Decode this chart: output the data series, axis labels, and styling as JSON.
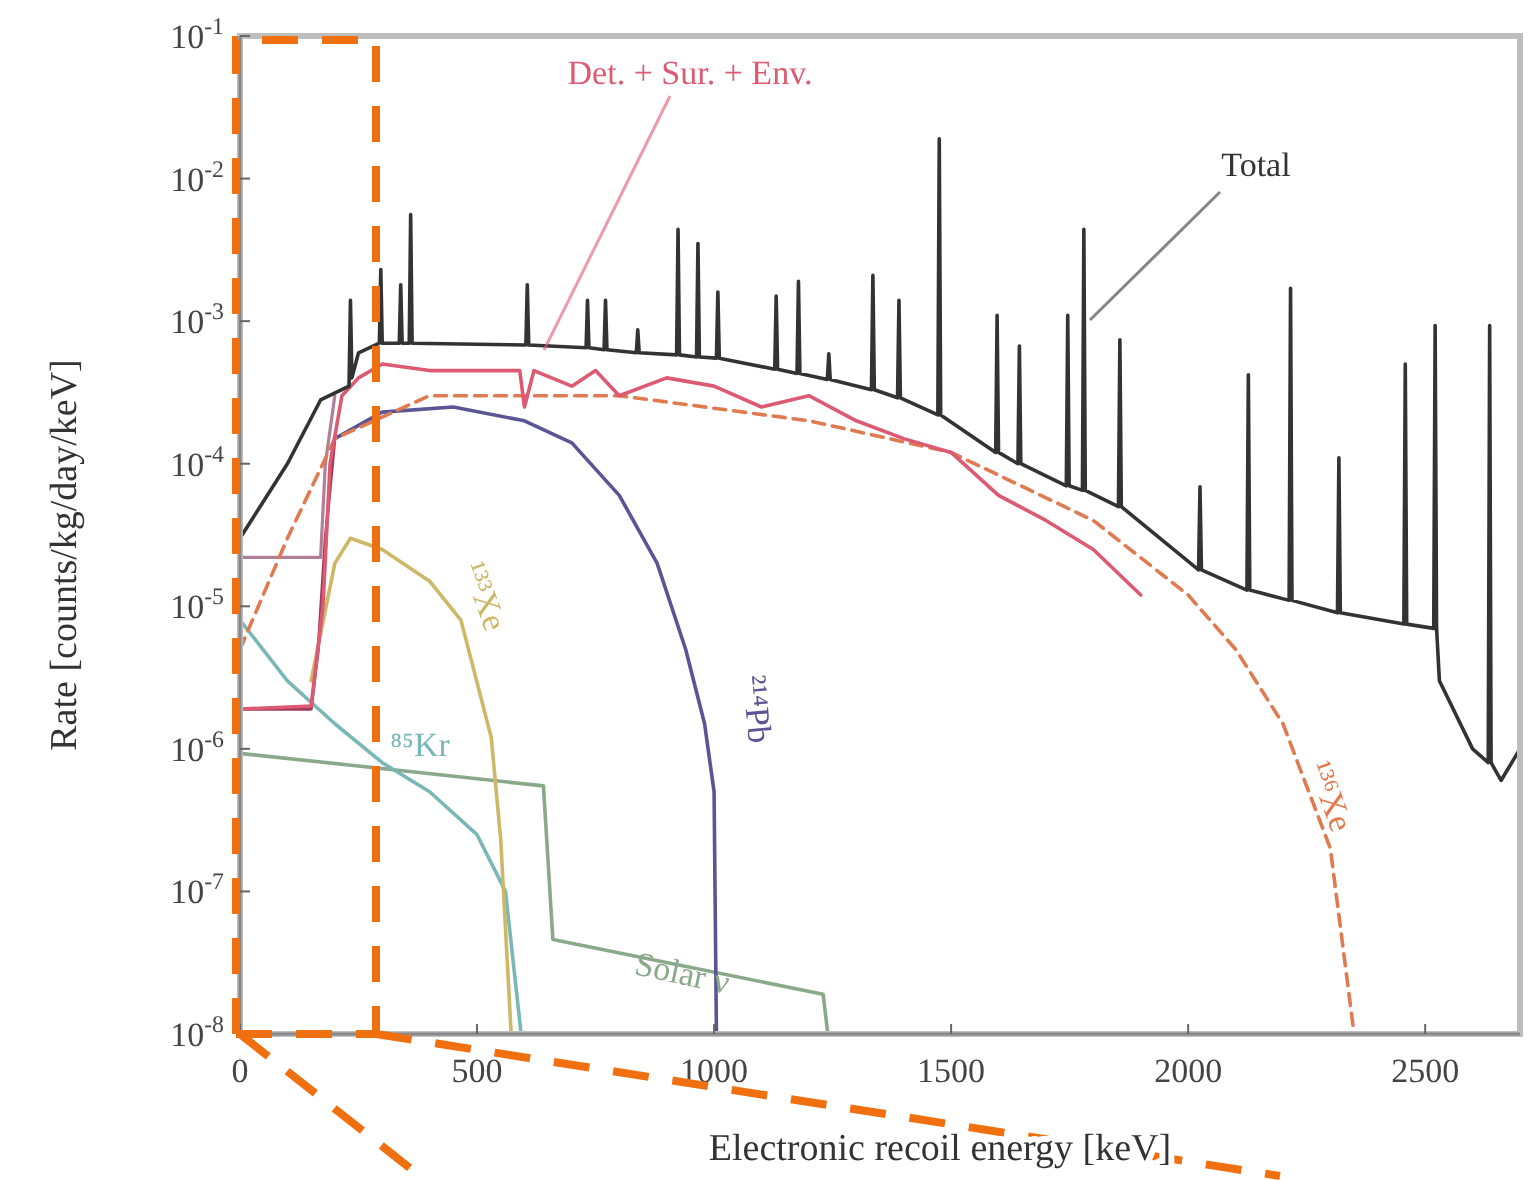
{
  "chart_data": {
    "type": "line",
    "xlabel": "Electronic recoil energy [keV]",
    "ylabel": "Rate [counts/kg/day/keV]",
    "log": "y",
    "grid": false,
    "xlim": [
      0,
      2700
    ],
    "xticks": [
      0,
      500,
      1000,
      1500,
      2000,
      2500
    ],
    "ylim": [
      1e-08,
      0.1
    ],
    "yticks": [
      {
        "value": 1e-08,
        "label": "10$^{-8}$"
      },
      {
        "value": 1e-07,
        "label": "10$^{-7}$"
      },
      {
        "value": 1e-06,
        "label": "10$^{-6}$"
      },
      {
        "value": 1e-05,
        "label": "10$^{-5}$"
      },
      {
        "value": 0.0001,
        "label": "10$^{-4}$"
      },
      {
        "value": 0.001,
        "label": "10$^{-3}$"
      },
      {
        "value": 0.01,
        "label": "10$^{-2}$"
      },
      {
        "value": 0.1,
        "label": "10$^{-1}$"
      }
    ],
    "series": [
      {
        "name": "Solar ν",
        "color": "#8aa88a",
        "x": [
          0,
          640,
          660,
          1230,
          1240
        ],
        "values": [
          9.3e-07,
          5.5e-07,
          4.6e-08,
          1.9e-08,
          1e-08
        ]
      },
      {
        "name": "⁸⁵Kr",
        "color": "#7ab8b8",
        "x": [
          0,
          100,
          200,
          300,
          400,
          500,
          560,
          593
        ],
        "values": [
          8e-06,
          3e-06,
          1.5e-06,
          8e-07,
          5e-07,
          2.5e-07,
          1e-07,
          1e-08
        ]
      },
      {
        "name": "¹³³Xe",
        "color": "#cdb868",
        "x": [
          150,
          200,
          233,
          300,
          400,
          466,
          530,
          550,
          572
        ],
        "values": [
          3e-06,
          2e-05,
          3e-05,
          2.5e-05,
          1.5e-05,
          8e-06,
          1.2e-06,
          2.3e-07,
          1e-08
        ]
      },
      {
        "color": "#b08098",
        "x": [
          0,
          170,
          180,
          200
        ],
        "values": [
          2.2e-05,
          2.2e-05,
          0.0001,
          0.0003
        ]
      },
      {
        "color": "#a03a5a",
        "x": [
          0,
          150,
          165,
          180,
          200
        ],
        "values": [
          1.9e-06,
          1.9e-06,
          5e-06,
          3e-05,
          0.00015
        ]
      },
      {
        "name": "²¹⁴Pb",
        "color": "#5a5594",
        "x": [
          200,
          300,
          450,
          600,
          700,
          800,
          880,
          940,
          980,
          1000,
          1005
        ],
        "values": [
          0.00015,
          0.00023,
          0.00025,
          0.0002,
          0.00014,
          6e-05,
          2e-05,
          5e-06,
          1.5e-06,
          5e-07,
          1e-08
        ]
      },
      {
        "name": "¹³⁶Xe",
        "color": "#e07a50",
        "line_style": "dashed",
        "x": [
          0,
          100,
          200,
          400,
          800,
          1200,
          1500,
          1800,
          2000,
          2100,
          2200,
          2300,
          2350
        ],
        "values": [
          5e-06,
          3e-05,
          0.00015,
          0.0003,
          0.0003,
          0.0002,
          0.00012,
          4e-05,
          1.2e-05,
          5e-06,
          1.5e-06,
          2e-07,
          1e-08
        ]
      },
      {
        "name": "Det. + Sur. + Env.",
        "color": "#dc5a72",
        "x": [
          0,
          150,
          175,
          190,
          215,
          250,
          300,
          400,
          590,
          600,
          620,
          700,
          750,
          800,
          900,
          1000,
          1100,
          1200,
          1300,
          1400,
          1500,
          1600,
          1700,
          1800,
          1900
        ],
        "values": [
          1.9e-06,
          2e-06,
          1e-05,
          0.0001,
          0.0003,
          0.0004,
          0.0005,
          0.00045,
          0.00045,
          0.00025,
          0.00045,
          0.00035,
          0.00045,
          0.0003,
          0.0004,
          0.00035,
          0.00025,
          0.0003,
          0.0002,
          0.00015,
          0.00012,
          6e-05,
          4e-05,
          2.5e-05,
          1.2e-05
        ]
      },
      {
        "name": "Total",
        "color": "#333333",
        "x": [
          0,
          100,
          170,
          230,
          233,
          236,
          250,
          294,
          297,
          300,
          336,
          339,
          342,
          357,
          360,
          363,
          603,
          606,
          609,
          730,
          733,
          736,
          768,
          771,
          774,
          836,
          839,
          842,
          921,
          924,
          927,
          963,
          966,
          969,
          1005,
          1008,
          1011,
          1128,
          1131,
          1134,
          1175,
          1178,
          1181,
          1239,
          1242,
          1245,
          1332,
          1335,
          1338,
          1387,
          1390,
          1393,
          1472,
          1475,
          1478,
          1594,
          1597,
          1600,
          1641,
          1644,
          1647,
          1743,
          1746,
          1749,
          1777,
          1780,
          1783,
          1853,
          1856,
          1859,
          2022,
          2025,
          2028,
          2124,
          2127,
          2130,
          2213,
          2216,
          2219,
          2315,
          2318,
          2321,
          2455,
          2458,
          2461,
          2518,
          2521,
          2524,
          2530,
          2600,
          2633,
          2636,
          2639,
          2660,
          2700
        ],
        "values": [
          3e-05,
          0.0001,
          0.00028,
          0.00035,
          0.0014,
          0.0004,
          0.0006,
          0.0007,
          0.0023,
          0.0007,
          0.0007,
          0.0018,
          0.0007,
          0.0007,
          0.0056,
          0.0007,
          0.00068,
          0.0018,
          0.00068,
          0.00065,
          0.0014,
          0.00065,
          0.00063,
          0.0014,
          0.00063,
          0.0006,
          0.00087,
          0.0006,
          0.00058,
          0.0044,
          0.00058,
          0.00056,
          0.0035,
          0.00056,
          0.00055,
          0.0016,
          0.00055,
          0.00046,
          0.0015,
          0.00046,
          0.00043,
          0.0019,
          0.00043,
          0.00039,
          0.00059,
          0.00039,
          0.00033,
          0.0021,
          0.00033,
          0.00029,
          0.0014,
          0.00029,
          0.00022,
          0.019,
          0.00022,
          0.00012,
          0.0011,
          0.00012,
          0.0001,
          0.00067,
          0.0001,
          7e-05,
          0.0011,
          7e-05,
          6.5e-05,
          0.0044,
          6.5e-05,
          5e-05,
          0.00074,
          5e-05,
          1.8e-05,
          6.9e-05,
          1.8e-05,
          1.3e-05,
          0.00042,
          1.3e-05,
          1.1e-05,
          0.0017,
          1.1e-05,
          9e-06,
          0.00011,
          9e-06,
          7.5e-06,
          0.0005,
          7.5e-06,
          7e-06,
          0.00093,
          7e-06,
          3e-06,
          1e-06,
          8e-07,
          0.00093,
          8e-07,
          6e-07,
          1e-06
        ]
      }
    ]
  }
}
